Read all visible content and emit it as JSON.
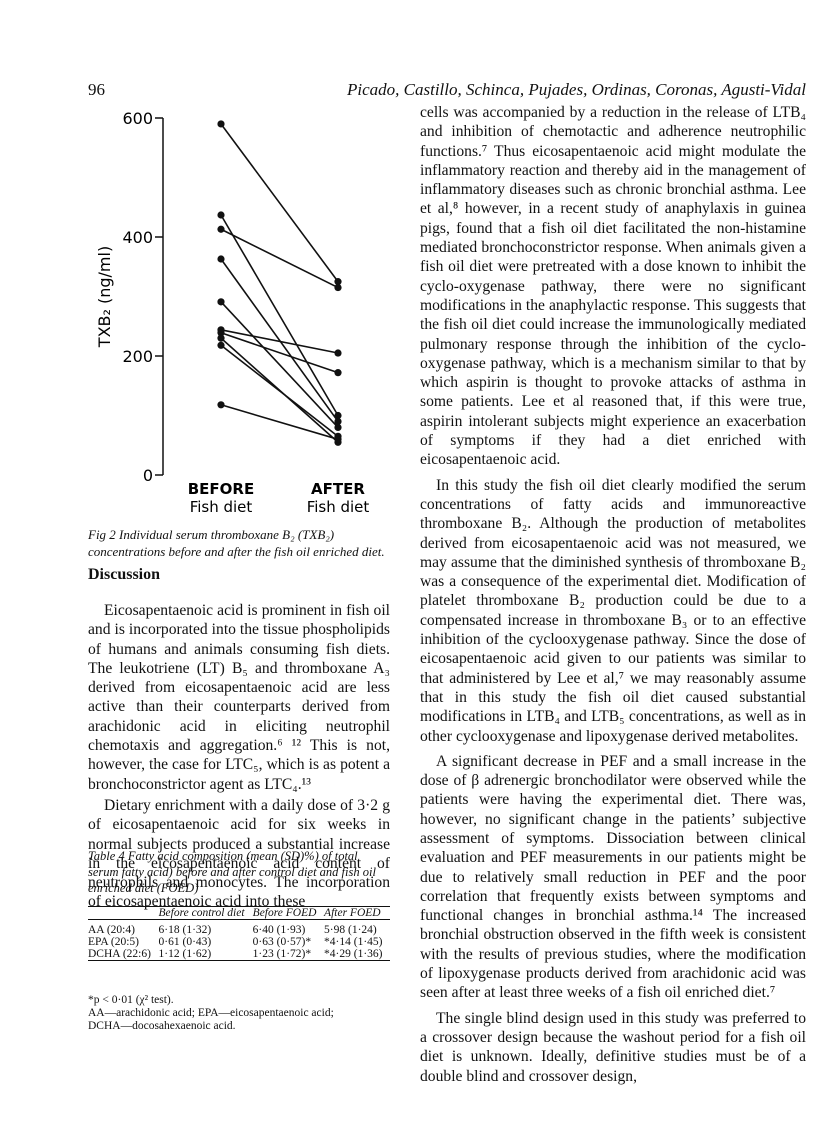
{
  "header": {
    "page_number": "96",
    "running_title": "Picado, Castillo, Schinca, Pujades, Ordinas, Coronas, Agusti-Vidal"
  },
  "chart_data": {
    "type": "paired-line",
    "y_label": "TXB₂ (ng/ml)",
    "categories": [
      "BEFORE",
      "AFTER"
    ],
    "category_sublabels": [
      "Fish diet",
      "Fish diet"
    ],
    "color": "#111111",
    "ylim": [
      0,
      600
    ],
    "yticks": [
      0,
      200,
      400,
      600
    ],
    "series": [
      {
        "values": [
          590,
          325
        ]
      },
      {
        "values": [
          437,
          100
        ]
      },
      {
        "values": [
          413,
          315
        ]
      },
      {
        "values": [
          363,
          90
        ]
      },
      {
        "values": [
          291,
          80
        ]
      },
      {
        "values": [
          244,
          205
        ]
      },
      {
        "values": [
          239,
          172
        ]
      },
      {
        "values": [
          230,
          55
        ]
      },
      {
        "values": [
          218,
          65
        ]
      },
      {
        "values": [
          118,
          60
        ]
      }
    ]
  },
  "figure_caption": "Fig 2  Individual serum thromboxane B₂ (TXB₂) concentrations before and after the fish oil enriched diet.",
  "section_heading": "Discussion",
  "left_paragraphs": [
    "Eicosapentaenoic acid is prominent in fish oil and is incorporated into the tissue phospholipids of humans and animals consuming fish diets. The leukotriene (LT) B₅ and thromboxane A₃ derived from eicosapentaenoic acid are less active than their counterparts derived from arachidonic acid in eliciting neutrophil chemotaxis and aggregation.⁶ ¹² This is not, however, the case for LTC₅, which is as potent a bronchoconstrictor agent as LTC₄.¹³",
    "Dietary enrichment with a daily dose of 3·2 g of eicosapentaenoic acid for six weeks in normal subjects produced a substantial increase in the eicosapentaenoic acid content of neutrophils and monocytes. The incorporation of eicosapentaenoic acid into these"
  ],
  "table": {
    "title": "Table 4  Fatty acid composition (mean (SD)%) of total serum fatty acid) before and after control diet and fish oil enriched diet (FOED)",
    "header": [
      "Before control diet",
      "Before FOED",
      "After FOED"
    ],
    "rows": [
      [
        "AA (20:4)",
        "6·18 (1·32)",
        "6·40 (1·93)",
        "5·98 (1·24)"
      ],
      [
        "EPA (20:5)",
        "0·61 (0·43)",
        "0·63 (0·57)*",
        "*4·14 (1·45)"
      ],
      [
        "DCHA (22:6)",
        "1·12 (1·62)",
        "1·23 (1·72)*",
        "*4·29 (1·36)"
      ]
    ],
    "footnotes": [
      "*p < 0·01 (χ² test).",
      "AA—arachidonic acid; EPA—eicosapentaenoic acid;",
      "DCHA—docosahexaenoic acid."
    ]
  },
  "right_paragraphs": [
    "cells was accompanied by a reduction in the release of LTB₄ and inhibition of chemotactic and adherence neutrophilic functions.⁷ Thus eicosapentaenoic acid might modulate the inflammatory reaction and thereby aid in the management of inflammatory diseases such as chronic bronchial asthma. Lee et al,⁸ however, in a recent study of anaphylaxis in guinea pigs, found that a fish oil diet facilitated the non-histamine mediated bronchoconstrictor response. When animals given a fish oil diet were pretreated with a dose known to inhibit the cyclo-oxygenase pathway, there were no significant modifications in the anaphylactic response. This suggests that the fish oil diet could increase the immunologically mediated pulmonary response through the inhibition of the cyclo-oxygenase pathway, which is a mechanism similar to that by which aspirin is thought to provoke attacks of asthma in some patients. Lee et al reasoned that, if this were true, aspirin intolerant subjects might experience an exacerbation of symptoms if they had a diet enriched with eicosapentaenoic acid.",
    "In this study the fish oil diet clearly modified the serum concentrations of fatty acids and immunoreactive thromboxane B₂. Although the production of metabolites derived from eicosapentaenoic acid was not measured, we may assume that the diminished synthesis of thromboxane B₂ was a consequence of the experimental diet. Modification of platelet thromboxane B₂ production could be due to a compensated increase in thromboxane B₃ or to an effective inhibition of the cyclooxygenase pathway. Since the dose of eicosapentaenoic acid given to our patients was similar to that administered by Lee et al,⁷ we may reasonably assume that in this study the fish oil diet caused substantial modifications in LTB₄ and LTB₅ concentrations, as well as in other cyclooxygenase and lipoxygenase derived metabolites.",
    "A significant decrease in PEF and a small increase in the dose of β adrenergic bronchodilator were observed while the patients were having the experimental diet. There was, however, no significant change in the patients’ subjective assessment of symptoms. Dissociation between clinical evaluation and PEF measurements in our patients might be due to relatively small reduction in PEF and the poor correlation that frequently exists between symptoms and functional changes in bronchial asthma.¹⁴ The increased bronchial obstruction observed in the fifth week is consistent with the results of previous studies, where the modification of lipoxygenase products derived from arachidonic acid was seen after at least three weeks of a fish oil enriched diet.⁷",
    "The single blind design used in this study was preferred to a crossover design because the washout period for a fish oil diet is unknown. Ideally, definitive studies must be of a double blind and crossover design,"
  ]
}
